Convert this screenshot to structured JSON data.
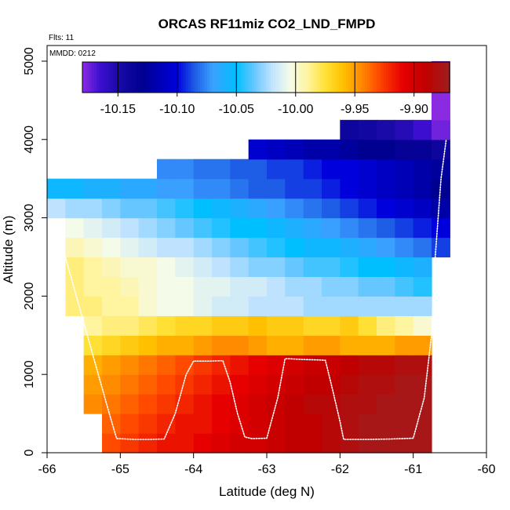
{
  "chart_data": {
    "type": "heatmap",
    "title": "ORCAS RF11miz CO2_LND_FMPD",
    "xlabel": "Latitude (deg N)",
    "ylabel": "Altitude (m)",
    "xlim": [
      -66,
      -60
    ],
    "ylim": [
      0,
      5200
    ],
    "xticks": [
      -66,
      -65,
      -64,
      -63,
      -62,
      -61,
      -60
    ],
    "yticks": [
      0,
      1000,
      2000,
      3000,
      4000,
      5000
    ],
    "annotations": {
      "flights": "Flts: 11",
      "date": "MMDD: 0212"
    },
    "colorbar": {
      "vmin": -10.18,
      "vmax": -9.87,
      "ticks": [
        -10.15,
        -10.1,
        -10.05,
        -10.0,
        -9.95,
        -9.9
      ],
      "tick_labels": [
        "-10.15",
        "-10.10",
        "-10.05",
        "-10.00",
        "-9.95",
        "-9.90"
      ],
      "colormap": [
        {
          "v": -10.18,
          "color": "#8a2be2"
        },
        {
          "v": -10.165,
          "color": "#3c0fd0"
        },
        {
          "v": -10.15,
          "color": "#1a0aa8"
        },
        {
          "v": -10.13,
          "color": "#000090"
        },
        {
          "v": -10.1,
          "color": "#0000dc"
        },
        {
          "v": -10.085,
          "color": "#1e5ee6"
        },
        {
          "v": -10.07,
          "color": "#3aa0ff"
        },
        {
          "v": -10.05,
          "color": "#00bfff"
        },
        {
          "v": -10.035,
          "color": "#66c6ff"
        },
        {
          "v": -10.02,
          "color": "#bfe3ff"
        },
        {
          "v": -10.005,
          "color": "#f4fbe8"
        },
        {
          "v": -9.99,
          "color": "#fff4a0"
        },
        {
          "v": -9.975,
          "color": "#ffe135"
        },
        {
          "v": -9.96,
          "color": "#ffc000"
        },
        {
          "v": -9.945,
          "color": "#ff8c00"
        },
        {
          "v": -9.93,
          "color": "#ff4a00"
        },
        {
          "v": -9.91,
          "color": "#e60000"
        },
        {
          "v": -9.89,
          "color": "#c00000"
        },
        {
          "v": -9.87,
          "color": "#9e1f1f"
        }
      ]
    },
    "grid": {
      "lat_start": -66,
      "lat_step": 0.25,
      "alt_step": 250
    },
    "cells": [
      {
        "row": 0,
        "lat_min": -65.25,
        "lat_max": -60.75,
        "values": [
          -9.93,
          -9.925,
          -9.92,
          -9.915,
          -9.915,
          -9.91,
          -9.905,
          -9.9,
          -9.9,
          -9.895,
          -9.89,
          -9.89,
          -9.885,
          -9.88,
          -9.875,
          -9.875,
          -9.875,
          -9.875
        ]
      },
      {
        "row": 1,
        "lat_min": -65.25,
        "lat_max": -60.75,
        "values": [
          -9.935,
          -9.93,
          -9.925,
          -9.92,
          -9.915,
          -9.915,
          -9.91,
          -9.905,
          -9.9,
          -9.895,
          -9.89,
          -9.89,
          -9.885,
          -9.88,
          -9.875,
          -9.875,
          -9.875,
          -9.875
        ]
      },
      {
        "row": 2,
        "lat_min": -65.5,
        "lat_max": -60.75,
        "values": [
          -9.945,
          -9.94,
          -9.935,
          -9.93,
          -9.925,
          -9.92,
          -9.915,
          -9.91,
          -9.905,
          -9.9,
          -9.895,
          -9.89,
          -9.885,
          -9.885,
          -9.88,
          -9.88,
          -9.875,
          -9.875,
          -9.875
        ]
      },
      {
        "row": 3,
        "lat_min": -65.5,
        "lat_max": -60.75,
        "values": [
          -9.95,
          -9.945,
          -9.94,
          -9.935,
          -9.93,
          -9.925,
          -9.92,
          -9.915,
          -9.91,
          -9.905,
          -9.9,
          -9.895,
          -9.89,
          -9.89,
          -9.885,
          -9.88,
          -9.88,
          -9.875,
          -9.875
        ]
      },
      {
        "row": 4,
        "lat_min": -65.5,
        "lat_max": -60.75,
        "values": [
          -9.955,
          -9.95,
          -9.945,
          -9.94,
          -9.935,
          -9.93,
          -9.925,
          -9.92,
          -9.915,
          -9.91,
          -9.905,
          -9.9,
          -9.895,
          -9.895,
          -9.89,
          -9.885,
          -9.885,
          -9.88,
          -9.88
        ]
      },
      {
        "row": 5,
        "lat_min": -65.5,
        "lat_max": -60.75,
        "values": [
          -9.975,
          -9.97,
          -9.965,
          -9.96,
          -9.955,
          -9.955,
          -9.95,
          -9.945,
          -9.945,
          -9.95,
          -9.955,
          -9.955,
          -9.95,
          -9.95,
          -9.955,
          -9.955,
          -9.955,
          -9.95,
          -9.95
        ]
      },
      {
        "row": 6,
        "lat_min": -65.5,
        "lat_max": -60.75,
        "values": [
          -9.99,
          -9.985,
          -9.985,
          -9.98,
          -9.975,
          -9.97,
          -9.97,
          -9.965,
          -9.965,
          -9.96,
          -9.965,
          -9.965,
          -9.97,
          -9.97,
          -9.965,
          -9.975,
          -9.985,
          -9.99,
          -10.0
        ]
      },
      {
        "row": 7,
        "lat_min": -65.75,
        "lat_max": -60.75,
        "values": [
          -9.985,
          -9.985,
          -9.99,
          -9.99,
          -10.0,
          -10.005,
          -10.005,
          -10.01,
          -10.015,
          -10.015,
          -10.02,
          -10.02,
          -10.02,
          -10.025,
          -10.025,
          -10.025,
          -10.025,
          -10.025,
          -10.025,
          -10.025
        ]
      },
      {
        "row": 8,
        "lat_min": -65.75,
        "lat_max": -60.75,
        "values": [
          -9.985,
          -9.99,
          -9.99,
          -9.995,
          -10.0,
          -10.005,
          -10.005,
          -10.01,
          -10.01,
          -10.015,
          -10.015,
          -10.02,
          -10.025,
          -10.025,
          -10.03,
          -10.03,
          -10.035,
          -10.035,
          -10.04,
          -10.045
        ]
      },
      {
        "row": 9,
        "lat_min": -65.75,
        "lat_max": -60.75,
        "values": [
          -9.985,
          -9.99,
          -9.995,
          -10.0,
          -10.0,
          -10.005,
          -10.01,
          -10.015,
          -10.02,
          -10.025,
          -10.03,
          -10.03,
          -10.035,
          -10.04,
          -10.04,
          -10.045,
          -10.05,
          -10.05,
          -10.055,
          -10.06
        ]
      },
      {
        "row": 10,
        "lat_min": -65.75,
        "lat_max": -60.5,
        "values": [
          -9.995,
          -10.0,
          -10.005,
          -10.01,
          -10.015,
          -10.02,
          -10.02,
          -10.025,
          -10.03,
          -10.035,
          -10.04,
          -10.045,
          -10.05,
          -10.055,
          -10.055,
          -10.06,
          -10.065,
          -10.07,
          -10.075,
          -10.08,
          -10.09
        ]
      },
      {
        "row": 11,
        "lat_min": -65.75,
        "lat_max": -60.5,
        "values": [
          -10.005,
          -10.01,
          -10.015,
          -10.02,
          -10.025,
          -10.03,
          -10.035,
          -10.04,
          -10.045,
          -10.05,
          -10.05,
          -10.055,
          -10.06,
          -10.065,
          -10.07,
          -10.075,
          -10.08,
          -10.085,
          -10.09,
          -10.095,
          -10.1
        ]
      },
      {
        "row": 12,
        "lat_min": -66.0,
        "lat_max": -60.5,
        "values": [
          -10.02,
          -10.025,
          -10.025,
          -10.03,
          -10.035,
          -10.035,
          -10.04,
          -10.045,
          -10.05,
          -10.055,
          -10.06,
          -10.065,
          -10.07,
          -10.075,
          -10.08,
          -10.085,
          -10.09,
          -10.095,
          -10.1,
          -10.105,
          -10.11,
          -10.12
        ]
      },
      {
        "row": 13,
        "lat_min": -66.0,
        "lat_max": -60.5,
        "values": [
          -10.055,
          -10.055,
          -10.06,
          -10.06,
          -10.065,
          -10.065,
          -10.07,
          -10.07,
          -10.075,
          -10.075,
          -10.08,
          -10.085,
          -10.085,
          -10.09,
          -10.09,
          -10.095,
          -10.1,
          -10.105,
          -10.11,
          -10.115,
          -10.12,
          -10.13
        ]
      },
      {
        "row": 14,
        "lat_min": -64.5,
        "lat_max": -60.5,
        "values": [
          -10.075,
          -10.075,
          -10.08,
          -10.08,
          -10.085,
          -10.085,
          -10.09,
          -10.09,
          -10.095,
          -10.1,
          -10.1,
          -10.105,
          -10.11,
          -10.115,
          -10.12,
          -10.125
        ]
      },
      {
        "row": 15,
        "lat_min": -63.25,
        "lat_max": -60.5,
        "values": [
          -10.105,
          -10.11,
          -10.115,
          -10.12,
          -10.12,
          -10.125,
          -10.13,
          -10.13,
          -10.135,
          -10.135,
          -10.14
        ]
      },
      {
        "row": 16,
        "lat_min": -62.0,
        "lat_max": -60.5,
        "values": [
          -10.14,
          -10.145,
          -10.15,
          -10.155,
          -10.165,
          -10.175
        ]
      },
      {
        "row": 17,
        "lat_min": -60.75,
        "lat_max": -60.5,
        "values": [
          -10.18
        ]
      },
      {
        "row": 18,
        "lat_min": -60.75,
        "lat_max": -60.5,
        "values": [
          -10.18
        ]
      },
      {
        "row": 19,
        "lat_min": -60.75,
        "lat_max": -60.5,
        "values": [
          -10.18
        ]
      }
    ],
    "track": [
      [
        -66.0,
        2900
      ],
      [
        -65.88,
        2900
      ],
      [
        -65.75,
        2500
      ],
      [
        -65.6,
        2000
      ],
      [
        -65.45,
        1500
      ],
      [
        -65.3,
        1000
      ],
      [
        -65.15,
        500
      ],
      [
        -65.05,
        180
      ],
      [
        -64.8,
        170
      ],
      [
        -64.6,
        170
      ],
      [
        -64.4,
        175
      ],
      [
        -64.25,
        500
      ],
      [
        -64.1,
        1000
      ],
      [
        -64.0,
        1170
      ],
      [
        -63.8,
        1170
      ],
      [
        -63.6,
        1175
      ],
      [
        -63.5,
        900
      ],
      [
        -63.4,
        500
      ],
      [
        -63.3,
        200
      ],
      [
        -63.2,
        180
      ],
      [
        -63.0,
        185
      ],
      [
        -62.85,
        700
      ],
      [
        -62.75,
        1200
      ],
      [
        -62.7,
        1200
      ],
      [
        -62.5,
        1190
      ],
      [
        -62.3,
        1185
      ],
      [
        -62.2,
        1180
      ],
      [
        -62.1,
        800
      ],
      [
        -62.0,
        400
      ],
      [
        -61.95,
        170
      ],
      [
        -61.6,
        170
      ],
      [
        -61.3,
        175
      ],
      [
        -61.0,
        185
      ],
      [
        -60.85,
        700
      ],
      [
        -60.75,
        1500
      ],
      [
        -60.7,
        2500
      ],
      [
        -60.62,
        3500
      ],
      [
        -60.55,
        4000
      ]
    ]
  }
}
